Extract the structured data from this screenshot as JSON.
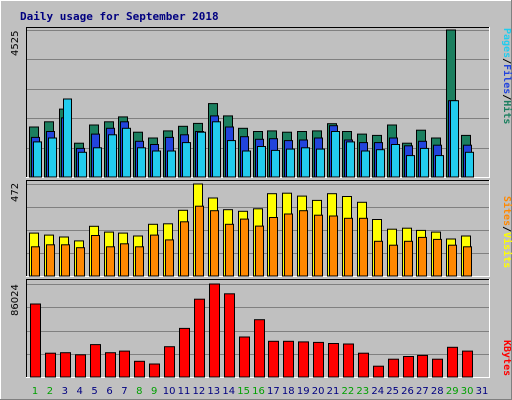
{
  "chart_data": {
    "type": "bar",
    "title": "Daily usage for September 2018",
    "categories": [
      "1",
      "2",
      "3",
      "4",
      "5",
      "6",
      "7",
      "8",
      "9",
      "10",
      "11",
      "12",
      "13",
      "14",
      "15",
      "16",
      "17",
      "18",
      "19",
      "20",
      "21",
      "22",
      "23",
      "24",
      "25",
      "26",
      "27",
      "28",
      "29",
      "30",
      "31"
    ],
    "weekend_days": [
      "1",
      "2",
      "8",
      "9",
      "15",
      "16",
      "22",
      "23",
      "29",
      "30"
    ],
    "panels": [
      {
        "name": "hits-files-pages",
        "ymax_label": "4525",
        "ylim": [
          0,
          4525
        ],
        "legend": [
          "Pages",
          "/",
          "Files",
          "/",
          "Hits"
        ],
        "series": [
          {
            "name": "Hits",
            "color": "#1b7f5f",
            "values": [
              1540,
              1700,
              2090,
              1040,
              1600,
              1700,
              1850,
              1380,
              1200,
              1420,
              1560,
              1650,
              2260,
              1880,
              1500,
              1400,
              1420,
              1380,
              1400,
              1420,
              1640,
              1400,
              1320,
              1280,
              1600,
              1040,
              1440,
              1200,
              4525,
              1280,
              0
            ]
          },
          {
            "name": "Files",
            "color": "#2244dd",
            "values": [
              1220,
              1400,
              1820,
              880,
              1320,
              1500,
              1700,
              1100,
              1000,
              1220,
              1300,
              1400,
              1880,
              1540,
              1240,
              1160,
              1180,
              1120,
              1140,
              1200,
              1580,
              1140,
              1060,
              1060,
              1200,
              960,
              1100,
              980,
              2350,
              980,
              0
            ]
          },
          {
            "name": "Pages",
            "color": "#22ccee",
            "values": [
              1080,
              1200,
              2400,
              760,
              900,
              1300,
              1500,
              900,
              800,
              800,
              1060,
              1380,
              1700,
              1120,
              800,
              940,
              820,
              860,
              900,
              860,
              1400,
              1080,
              800,
              840,
              1000,
              660,
              880,
              660,
              2350,
              760,
              0
            ]
          }
        ]
      },
      {
        "name": "visits-sites",
        "ymax_label": "472",
        "ylim": [
          0,
          472
        ],
        "legend": [
          "Sites",
          "/",
          "Visits"
        ],
        "series": [
          {
            "name": "Visits",
            "color": "#ffff00",
            "values": [
              220,
              210,
              200,
              180,
              255,
              225,
              220,
              205,
              265,
              268,
              337,
              472,
              400,
              340,
              332,
              345,
              422,
              425,
              410,
              388,
              422,
              408,
              378,
              290,
              240,
              245,
              234,
              225,
              190,
              205,
              0
            ]
          },
          {
            "name": "Sites",
            "color": "#ff8800",
            "values": [
              150,
              160,
              160,
              145,
              208,
              150,
              165,
              150,
              210,
              185,
              278,
              358,
              335,
              265,
              292,
              256,
              300,
              318,
              335,
              312,
              308,
              296,
              296,
              178,
              158,
              178,
              198,
              188,
              158,
              150,
              0
            ]
          }
        ]
      },
      {
        "name": "kbytes",
        "ymax_label": "86024",
        "ylim": [
          0,
          86024
        ],
        "legend": [
          "KBytes"
        ],
        "series": [
          {
            "name": "KBytes",
            "color": "#ff0000",
            "values": [
              67500,
              22000,
              22500,
              20500,
              30000,
              22500,
              24000,
              14500,
              12000,
              28000,
              45000,
              72000,
              86024,
              77000,
              37000,
              53000,
              33000,
              33000,
              32500,
              32000,
              31000,
              30500,
              22000,
              10000,
              16500,
              19000,
              20000,
              16500,
              27500,
              24000,
              0
            ]
          }
        ]
      }
    ],
    "colors": {
      "background": "#c0c0c0",
      "title": "#000080",
      "weekday_label": "#000080",
      "weekend_label": "#00a000",
      "gridline": "#808080"
    }
  }
}
